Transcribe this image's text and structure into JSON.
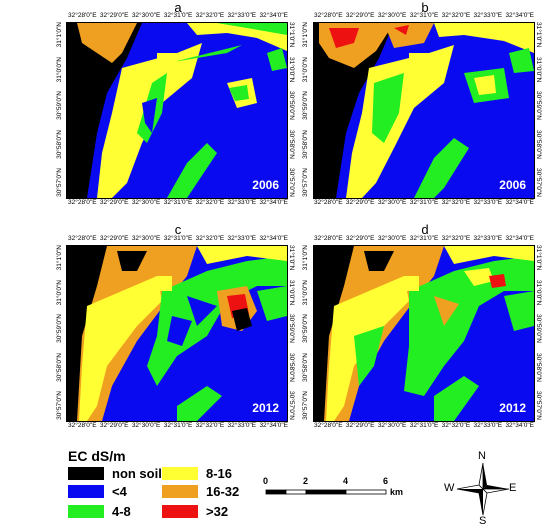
{
  "panels": [
    {
      "letter": "a",
      "year": "2006"
    },
    {
      "letter": "b",
      "year": "2006"
    },
    {
      "letter": "c",
      "year": "2012"
    },
    {
      "letter": "d",
      "year": "2012"
    }
  ],
  "lon_ticks": [
    "32°28'0\"E",
    "32°29'0\"E",
    "32°30'0\"E",
    "32°31'0\"E",
    "32°32'0\"E",
    "32°33'0\"E",
    "32°34'0\"E"
  ],
  "lat_ticks": [
    "31°1'0\"N",
    "31°0'0\"N",
    "30°59'0\"N",
    "30°58'0\"N",
    "30°57'0\"N"
  ],
  "legend": {
    "title": "EC dS/m",
    "items": [
      {
        "label": "non soil",
        "color": "#000000"
      },
      {
        "label": "<4",
        "color": "#0a0af0"
      },
      {
        "label": "4-8",
        "color": "#22ee22"
      },
      {
        "label": "8-16",
        "color": "#ffff33"
      },
      {
        "label": "16-32",
        "color": "#f0a020"
      },
      {
        "label": ">32",
        "color": "#ee1111"
      }
    ]
  },
  "scale": {
    "labels": [
      "0",
      "2",
      "4",
      "6"
    ],
    "unit": "km"
  },
  "compass": {
    "n": "N",
    "s": "S",
    "e": "E",
    "w": "W"
  }
}
